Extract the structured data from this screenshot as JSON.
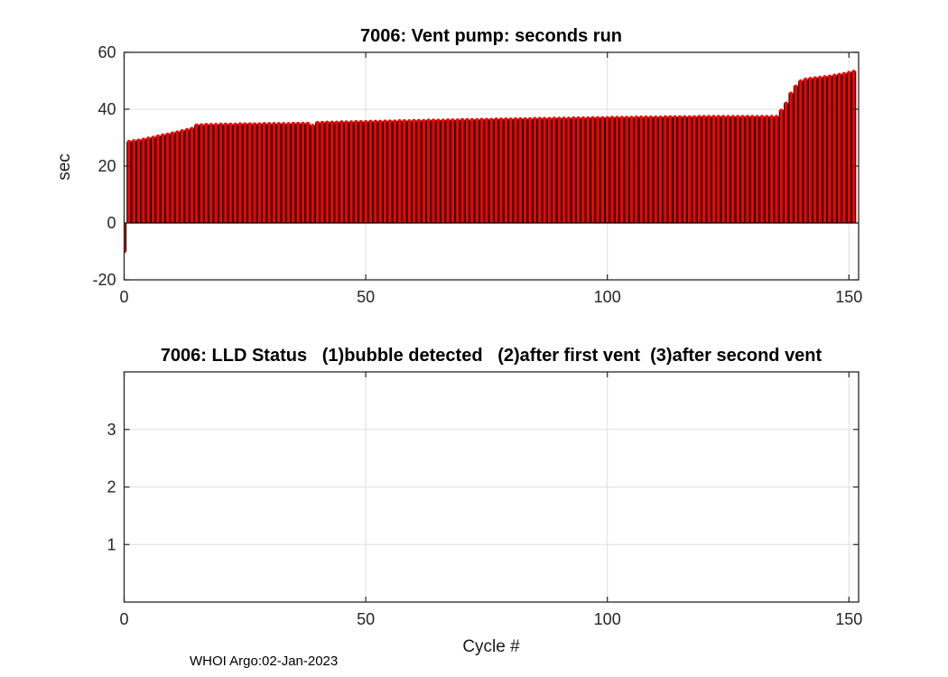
{
  "figure": {
    "background": "#ffffff",
    "footer": "WHOI Argo:02-Jan-2023"
  },
  "colors": {
    "bar_fill": "#fa0000",
    "bar_edge": "#000000",
    "marker": "#fa0000",
    "baseline": "#000000",
    "axis": "#262626",
    "grid": "#e0e0e0",
    "tick_label": "#262626",
    "title": "#000000"
  },
  "chart_data": [
    {
      "type": "bar",
      "title": "7006: Vent pump: seconds run",
      "ylabel": "sec",
      "xlim": [
        0,
        152
      ],
      "ylim": [
        -20,
        60
      ],
      "xticks": [
        0,
        50,
        100,
        150
      ],
      "yticks": [
        -20,
        0,
        20,
        40,
        60
      ],
      "grid": true,
      "legend": null,
      "x_start_cycle": 0,
      "values": [
        -10,
        28.5,
        28.8,
        29,
        29.3,
        29.7,
        30,
        30.4,
        30.8,
        31.1,
        31.5,
        31.9,
        32.3,
        32.7,
        33.1,
        34.3,
        34.4,
        34.5,
        34.5,
        34.5,
        34.6,
        34.6,
        34.6,
        34.6,
        34.7,
        34.7,
        34.7,
        34.7,
        34.7,
        34.8,
        34.8,
        34.8,
        34.8,
        34.8,
        34.8,
        34.9,
        34.9,
        34.9,
        34.9,
        34.2,
        35.2,
        35.2,
        35.3,
        35.3,
        35.3,
        35.4,
        35.4,
        35.4,
        35.5,
        35.5,
        35.5,
        35.6,
        35.6,
        35.6,
        35.7,
        35.7,
        35.7,
        35.8,
        35.8,
        35.8,
        35.9,
        35.9,
        35.9,
        36,
        36,
        36,
        36,
        36.1,
        36.1,
        36.1,
        36.2,
        36.2,
        36.2,
        36.2,
        36.3,
        36.3,
        36.3,
        36.4,
        36.4,
        36.4,
        36.4,
        36.5,
        36.5,
        36.5,
        36.5,
        36.6,
        36.6,
        36.6,
        36.6,
        36.7,
        36.7,
        36.7,
        36.7,
        36.8,
        36.8,
        36.8,
        36.8,
        36.9,
        36.9,
        36.9,
        36.9,
        37,
        37,
        37,
        37,
        37,
        37.1,
        37.1,
        37.1,
        37.1,
        37.1,
        37.1,
        37.2,
        37.2,
        37.2,
        37.2,
        37.2,
        37.2,
        37.2,
        37.3,
        37.3,
        37.3,
        37.3,
        37.3,
        37.3,
        37.3,
        37.3,
        37.3,
        37.3,
        37.3,
        37.3,
        37.3,
        37.3,
        37.3,
        37.3,
        37.3,
        39.5,
        42,
        45.5,
        48,
        49.8,
        50.4,
        50.7,
        50.9,
        51.1,
        51.3,
        51.5,
        51.8,
        52.1,
        52.4,
        52.8,
        53.2
      ]
    },
    {
      "type": "scatter",
      "title": "7006: LLD Status   (1)bubble detected   (2)after first vent  (3)after second vent",
      "xlabel": "Cycle #",
      "xlim": [
        0,
        152
      ],
      "ylim": [
        0,
        4
      ],
      "xticks": [
        0,
        50,
        100,
        150
      ],
      "yticks": [
        1,
        2,
        3
      ],
      "grid": true,
      "legend": null,
      "series": []
    }
  ]
}
